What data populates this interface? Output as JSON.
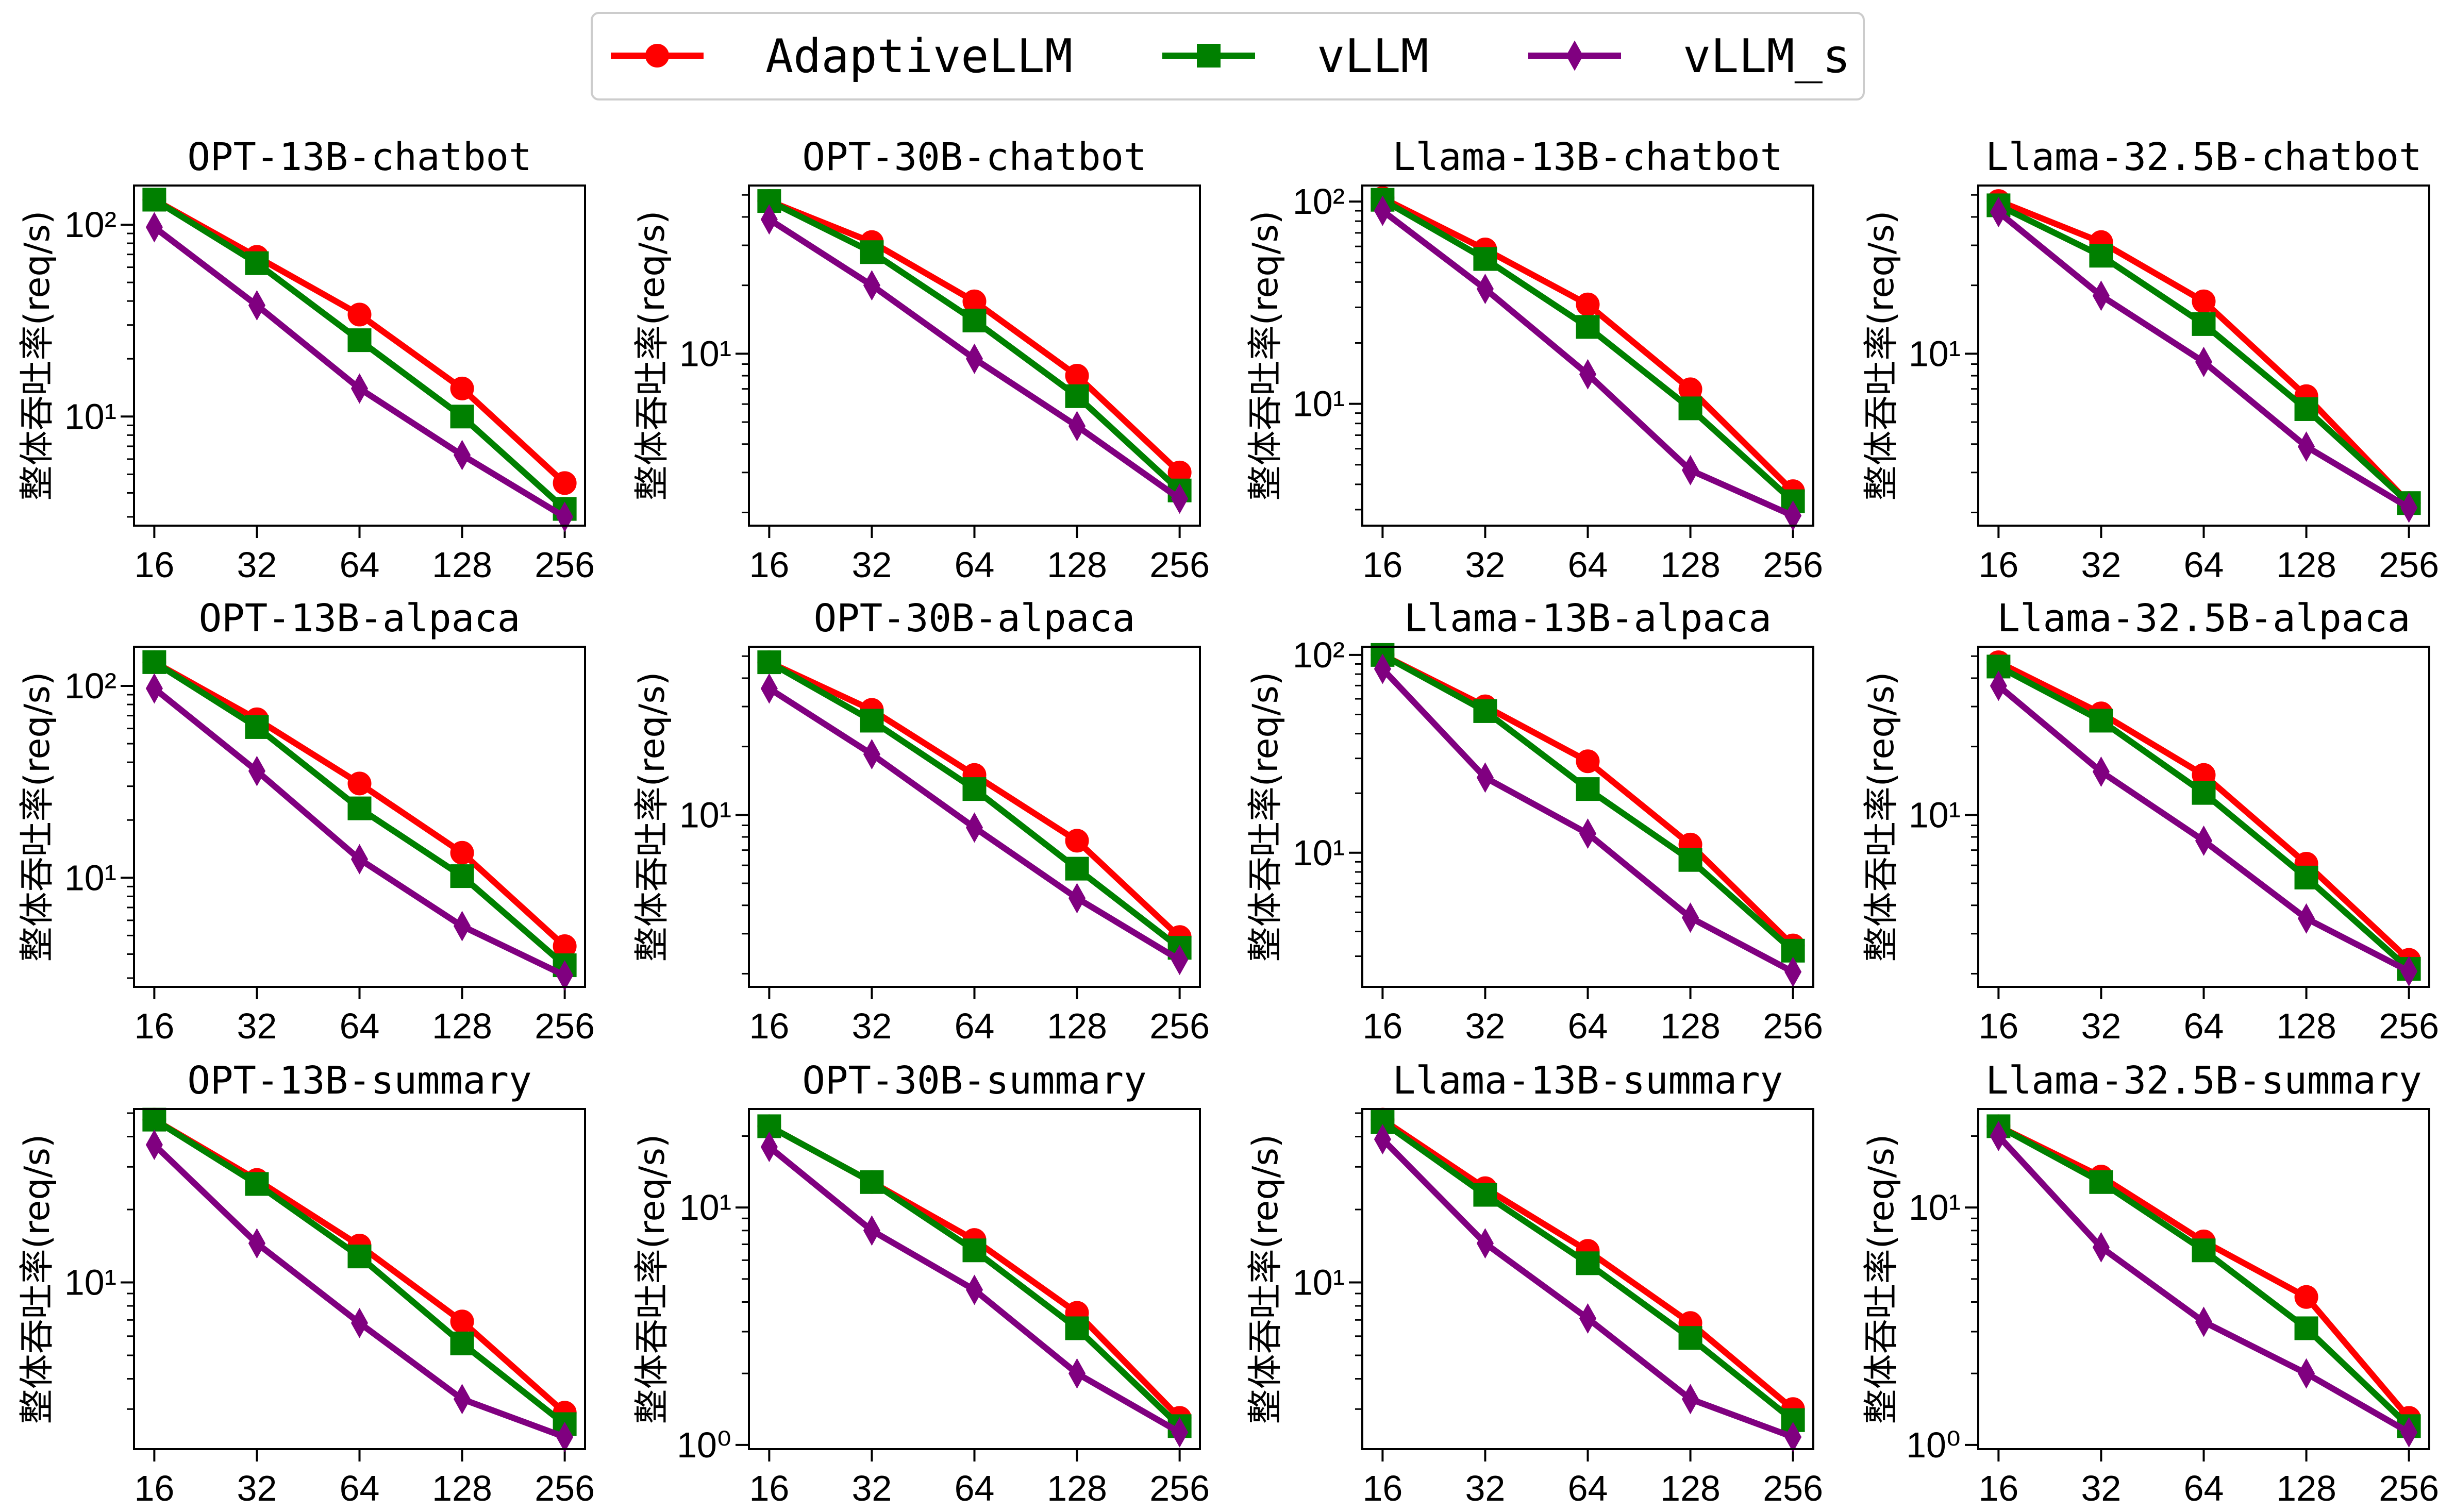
{
  "series_styles": [
    {
      "name": "AdaptiveLLM",
      "color": "#ff0000",
      "marker": "circle"
    },
    {
      "name": "vLLM",
      "color": "#008000",
      "marker": "square"
    },
    {
      "name": "vLLM_s",
      "color": "#800080",
      "marker": "diamond"
    }
  ],
  "chart_data": [
    {
      "type": "line",
      "title": "OPT-13B-chatbot",
      "ylabel": "整体吞吐率(req/s)",
      "x": [
        16,
        32,
        64,
        128,
        256
      ],
      "xticks": [
        "16",
        "32",
        "64",
        "128",
        "256"
      ],
      "yscale": "log",
      "ylim": [
        2.7,
        160
      ],
      "yticks": [
        {
          "value": 10,
          "label": "10¹"
        },
        {
          "value": 100,
          "label": "10²"
        }
      ],
      "series": [
        {
          "name": "AdaptiveLLM",
          "values": [
            135,
            68,
            34,
            14,
            4.5
          ]
        },
        {
          "name": "vLLM",
          "values": [
            135,
            63,
            25,
            10,
            3.3
          ]
        },
        {
          "name": "vLLM_s",
          "values": [
            97,
            38,
            14,
            6.3,
            3.0
          ]
        }
      ]
    },
    {
      "type": "line",
      "title": "OPT-30B-chatbot",
      "ylabel": "整体吞吐率(req/s)",
      "x": [
        16,
        32,
        64,
        128,
        256
      ],
      "xticks": [
        "16",
        "32",
        "64",
        "128",
        "256"
      ],
      "yscale": "log",
      "ylim": [
        1.75,
        55
      ],
      "yticks": [
        {
          "value": 10,
          "label": "10¹"
        }
      ],
      "series": [
        {
          "name": "AdaptiveLLM",
          "values": [
            47,
            31,
            17,
            8,
            3.0
          ]
        },
        {
          "name": "vLLM",
          "values": [
            47,
            28,
            14,
            6.5,
            2.5
          ]
        },
        {
          "name": "vLLM_s",
          "values": [
            39,
            20,
            9.5,
            4.8,
            2.3
          ]
        }
      ]
    },
    {
      "type": "line",
      "title": "Llama-13B-chatbot",
      "ylabel": "整体吞吐率(req/s)",
      "x": [
        16,
        32,
        64,
        128,
        256
      ],
      "xticks": [
        "16",
        "32",
        "64",
        "128",
        "256"
      ],
      "yscale": "log",
      "ylim": [
        2.5,
        120
      ],
      "yticks": [
        {
          "value": 10,
          "label": "10¹"
        },
        {
          "value": 100,
          "label": "10²"
        }
      ],
      "series": [
        {
          "name": "AdaptiveLLM",
          "values": [
            104,
            58,
            31,
            11.8,
            3.7
          ]
        },
        {
          "name": "vLLM",
          "values": [
            102,
            52,
            24,
            9.5,
            3.3
          ]
        },
        {
          "name": "vLLM_s",
          "values": [
            90,
            37,
            14,
            4.7,
            2.8
          ]
        }
      ]
    },
    {
      "type": "line",
      "title": "Llama-32.5B-chatbot",
      "ylabel": "整体吞吐率(req/s)",
      "x": [
        16,
        32,
        64,
        128,
        256
      ],
      "xticks": [
        "16",
        "32",
        "64",
        "128",
        "256"
      ],
      "yscale": "log",
      "ylim": [
        1.75,
        55
      ],
      "yticks": [
        {
          "value": 10,
          "label": "10¹"
        }
      ],
      "series": [
        {
          "name": "AdaptiveLLM",
          "values": [
            47,
            31,
            17,
            6.5,
            2.2
          ]
        },
        {
          "name": "vLLM",
          "values": [
            45,
            27,
            13.5,
            5.7,
            2.2
          ]
        },
        {
          "name": "vLLM_s",
          "values": [
            42,
            18,
            9.2,
            3.9,
            2.1
          ]
        }
      ]
    },
    {
      "type": "line",
      "title": "OPT-13B-alpaca",
      "ylabel": "整体吞吐率(req/s)",
      "x": [
        16,
        32,
        64,
        128,
        256
      ],
      "xticks": [
        "16",
        "32",
        "64",
        "128",
        "256"
      ],
      "yscale": "log",
      "ylim": [
        2.7,
        160
      ],
      "yticks": [
        {
          "value": 10,
          "label": "10¹"
        },
        {
          "value": 100,
          "label": "10²"
        }
      ],
      "series": [
        {
          "name": "AdaptiveLLM",
          "values": [
            133,
            67,
            31,
            13.5,
            4.4
          ]
        },
        {
          "name": "vLLM",
          "values": [
            133,
            61,
            23,
            10.2,
            3.5
          ]
        },
        {
          "name": "vLLM_s",
          "values": [
            97,
            36,
            12.5,
            5.6,
            3.1
          ]
        }
      ]
    },
    {
      "type": "line",
      "title": "OPT-30B-alpaca",
      "ylabel": "整体吞吐率(req/s)",
      "x": [
        16,
        32,
        64,
        128,
        256
      ],
      "xticks": [
        "16",
        "32",
        "64",
        "128",
        "256"
      ],
      "yscale": "log",
      "ylim": [
        1.75,
        55
      ],
      "yticks": [
        {
          "value": 10,
          "label": "10¹"
        }
      ],
      "series": [
        {
          "name": "AdaptiveLLM",
          "values": [
            47,
            29,
            15,
            7.7,
            2.9
          ]
        },
        {
          "name": "vLLM",
          "values": [
            47,
            26,
            13,
            5.8,
            2.6
          ]
        },
        {
          "name": "vLLM_s",
          "values": [
            36,
            18.5,
            8.8,
            4.3,
            2.3
          ]
        }
      ]
    },
    {
      "type": "line",
      "title": "Llama-13B-alpaca",
      "ylabel": "整体吞吐率(req/s)",
      "x": [
        16,
        32,
        64,
        128,
        256
      ],
      "xticks": [
        "16",
        "32",
        "64",
        "128",
        "256"
      ],
      "yscale": "log",
      "ylim": [
        2.1,
        110
      ],
      "yticks": [
        {
          "value": 10,
          "label": "10¹"
        },
        {
          "value": 100,
          "label": "10²"
        }
      ],
      "series": [
        {
          "name": "AdaptiveLLM",
          "values": [
            100,
            55,
            29,
            11,
            3.4
          ]
        },
        {
          "name": "vLLM",
          "values": [
            100,
            52,
            21,
            9.2,
            3.2
          ]
        },
        {
          "name": "vLLM_s",
          "values": [
            85,
            24,
            12.5,
            4.7,
            2.5
          ]
        }
      ]
    },
    {
      "type": "line",
      "title": "Llama-32.5B-alpaca",
      "ylabel": "整体吞吐率(req/s)",
      "x": [
        16,
        32,
        64,
        128,
        256
      ],
      "xticks": [
        "16",
        "32",
        "64",
        "128",
        "256"
      ],
      "yscale": "log",
      "ylim": [
        1.75,
        55
      ],
      "yticks": [
        {
          "value": 10,
          "label": "10¹"
        }
      ],
      "series": [
        {
          "name": "AdaptiveLLM",
          "values": [
            47,
            28,
            15,
            6.1,
            2.3
          ]
        },
        {
          "name": "vLLM",
          "values": [
            45,
            26,
            12.5,
            5.3,
            2.1
          ]
        },
        {
          "name": "vLLM_s",
          "values": [
            37,
            15.5,
            7.7,
            3.5,
            2.05
          ]
        }
      ]
    },
    {
      "type": "line",
      "title": "OPT-13B-summary",
      "ylabel": "整体吞吐率(req/s)",
      "x": [
        16,
        32,
        64,
        128,
        256
      ],
      "xticks": [
        "16",
        "32",
        "64",
        "128",
        "256"
      ],
      "yscale": "log",
      "ylim": [
        2.05,
        52
      ],
      "yticks": [
        {
          "value": 10,
          "label": "10¹"
        }
      ],
      "series": [
        {
          "name": "AdaptiveLLM",
          "values": [
            47,
            26.5,
            14.2,
            6.9,
            2.9
          ]
        },
        {
          "name": "vLLM",
          "values": [
            47,
            25.5,
            12.8,
            5.6,
            2.6
          ]
        },
        {
          "name": "vLLM_s",
          "values": [
            37,
            14.5,
            6.8,
            3.3,
            2.3
          ]
        }
      ]
    },
    {
      "type": "line",
      "title": "OPT-30B-summary",
      "ylabel": "整体吞吐率(req/s)",
      "x": [
        16,
        32,
        64,
        128,
        256
      ],
      "xticks": [
        "16",
        "32",
        "64",
        "128",
        "256"
      ],
      "yscale": "log",
      "ylim": [
        0.96,
        26
      ],
      "yticks": [
        {
          "value": 1,
          "label": "10⁰"
        },
        {
          "value": 10,
          "label": "10¹"
        }
      ],
      "series": [
        {
          "name": "AdaptiveLLM",
          "values": [
            22,
            12.8,
            7.3,
            3.6,
            1.3
          ]
        },
        {
          "name": "vLLM",
          "values": [
            22,
            12.8,
            6.6,
            3.1,
            1.2
          ]
        },
        {
          "name": "vLLM_s",
          "values": [
            18,
            8,
            4.5,
            2.0,
            1.13
          ]
        }
      ]
    },
    {
      "type": "line",
      "title": "Llama-13B-summary",
      "ylabel": "整体吞吐率(req/s)",
      "x": [
        16,
        32,
        64,
        128,
        256
      ],
      "xticks": [
        "16",
        "32",
        "64",
        "128",
        "256"
      ],
      "yscale": "log",
      "ylim": [
        2.05,
        52
      ],
      "yticks": [
        {
          "value": 10,
          "label": "10¹"
        }
      ],
      "series": [
        {
          "name": "AdaptiveLLM",
          "values": [
            47,
            24.5,
            13.5,
            6.8,
            3.0
          ]
        },
        {
          "name": "vLLM",
          "values": [
            46,
            23,
            12,
            5.9,
            2.7
          ]
        },
        {
          "name": "vLLM_s",
          "values": [
            39,
            14.5,
            7.1,
            3.3,
            2.3
          ]
        }
      ]
    },
    {
      "type": "line",
      "title": "Llama-32.5B-summary",
      "ylabel": "整体吞吐率(req/s)",
      "x": [
        16,
        32,
        64,
        128,
        256
      ],
      "xticks": [
        "16",
        "32",
        "64",
        "128",
        "256"
      ],
      "yscale": "log",
      "ylim": [
        0.96,
        26
      ],
      "yticks": [
        {
          "value": 1,
          "label": "10⁰"
        },
        {
          "value": 10,
          "label": "10¹"
        }
      ],
      "series": [
        {
          "name": "AdaptiveLLM",
          "values": [
            22,
            13.5,
            7.2,
            4.2,
            1.3
          ]
        },
        {
          "name": "vLLM",
          "values": [
            22,
            12.8,
            6.6,
            3.1,
            1.2
          ]
        },
        {
          "name": "vLLM_s",
          "values": [
            20,
            6.8,
            3.3,
            2.0,
            1.13
          ]
        }
      ]
    }
  ]
}
